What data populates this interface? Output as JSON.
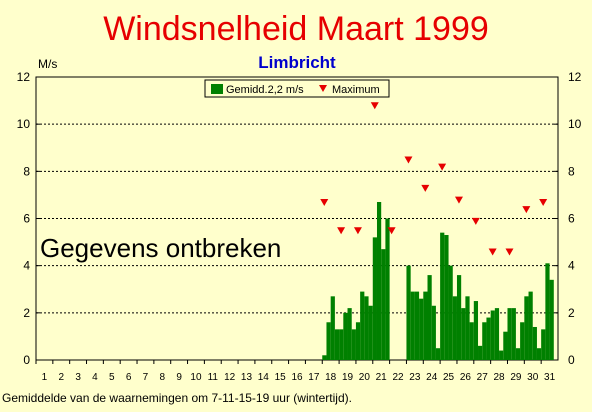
{
  "chart_data": {
    "type": "bar",
    "title": "Windsnelheid Maart 1999",
    "subtitle": "Limbricht",
    "ylabel": "M/s",
    "ylim": [
      0,
      12
    ],
    "yticks": [
      0,
      2,
      4,
      6,
      8,
      10,
      12
    ],
    "xticks": [
      "1",
      "2",
      "3",
      "4",
      "5",
      "6",
      "7",
      "8",
      "9",
      "10",
      "11",
      "12",
      "13",
      "14",
      "15",
      "16",
      "17",
      "18",
      "19",
      "20",
      "21",
      "22",
      "23",
      "24",
      "25",
      "26",
      "27",
      "28",
      "29",
      "30",
      "31"
    ],
    "grid": true,
    "legend_position": "top-center",
    "annotation": "Gegevens ontbreken",
    "footnote": "Gemiddelde van de waarnemingen om 7-11-15-19 uur (wintertijd).",
    "series": [
      {
        "name": "Gemidd.2,2 m/s",
        "type": "bar",
        "color": "#008000",
        "x": [
          18.0,
          18.25,
          18.5,
          18.75,
          19.0,
          19.25,
          19.5,
          19.75,
          20.0,
          20.25,
          20.5,
          20.75,
          21.0,
          21.25,
          21.5,
          21.75,
          23.0,
          23.25,
          23.5,
          23.75,
          24.0,
          24.25,
          24.5,
          24.75,
          25.0,
          25.25,
          25.5,
          25.75,
          26.0,
          26.25,
          26.5,
          26.75,
          27.0,
          27.25,
          27.5,
          27.75,
          28.0,
          28.25,
          28.5,
          28.75,
          29.0,
          29.25,
          29.5,
          29.75,
          30.0,
          30.25,
          30.5,
          30.75,
          31.0,
          31.25,
          31.5
        ],
        "values": [
          0.2,
          1.6,
          2.7,
          1.3,
          1.3,
          2.0,
          2.2,
          1.3,
          1.6,
          2.9,
          2.7,
          2.3,
          5.2,
          6.7,
          4.7,
          6.0,
          4.0,
          2.9,
          2.9,
          2.6,
          2.9,
          3.6,
          2.3,
          0.5,
          5.4,
          5.3,
          4.0,
          2.7,
          3.6,
          2.2,
          2.7,
          1.6,
          2.5,
          0.6,
          1.6,
          1.8,
          2.1,
          2.2,
          0.4,
          1.2,
          2.2,
          2.2,
          0.5,
          1.6,
          2.7,
          2.9,
          1.4,
          0.5,
          1.3,
          4.1,
          3.4
        ]
      },
      {
        "name": "Maximum",
        "type": "scatter",
        "marker": "triangle-down",
        "color": "#e60000",
        "x": [
          18,
          19,
          20,
          21,
          22,
          23,
          24,
          25,
          26,
          27,
          28,
          29,
          30,
          31
        ],
        "values": [
          6.7,
          5.5,
          5.5,
          10.8,
          5.5,
          8.5,
          7.3,
          8.2,
          6.8,
          5.9,
          4.6,
          4.6,
          6.4,
          6.7
        ]
      }
    ]
  }
}
